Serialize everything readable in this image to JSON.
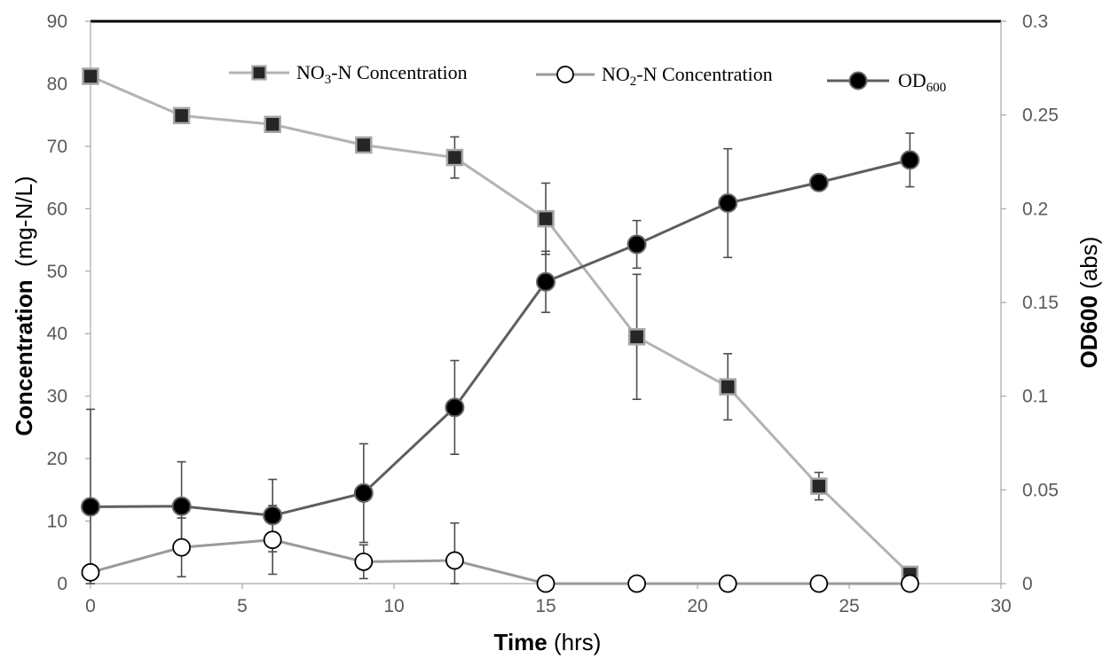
{
  "chart_data": {
    "type": "line",
    "x": [
      0,
      3,
      6,
      9,
      12,
      15,
      18,
      21,
      24,
      27
    ],
    "xlim": [
      0,
      30
    ],
    "xticks": [
      "0",
      "5",
      "10",
      "15",
      "20",
      "25",
      "30"
    ],
    "xlabel": {
      "bold": "Time",
      "rest": " (hrs)"
    },
    "ylim_left": [
      0,
      90
    ],
    "yticks_left": [
      "0",
      "10",
      "20",
      "30",
      "40",
      "50",
      "60",
      "70",
      "80",
      "90"
    ],
    "ylabel_left": {
      "bold": "Concentration",
      "rest": "  (mg-N/L)"
    },
    "ylim_right": [
      0,
      0.3
    ],
    "yticks_right": [
      "0",
      "0.05",
      "0.1",
      "0.15",
      "0.2",
      "0.25",
      "0.3"
    ],
    "ylabel_right": {
      "bold": "OD600",
      "rest": " (abs)"
    },
    "grid": false,
    "legend_position": "top",
    "series": [
      {
        "key": "no3",
        "name": "NO3-N Concentration",
        "legend_parts": [
          "NO",
          "3",
          "-N Concentration"
        ],
        "axis": "left",
        "marker": "square",
        "line_color": "#b3b3b3",
        "marker_fill": "#262626",
        "values": [
          81.2,
          74.9,
          73.5,
          70.2,
          68.2,
          58.4,
          39.5,
          31.5,
          15.6,
          1.5
        ],
        "errors": [
          null,
          null,
          null,
          null,
          3.3,
          5.7,
          10.0,
          5.3,
          2.2,
          1.0
        ]
      },
      {
        "key": "no2",
        "name": "NO2-N Concentration",
        "legend_parts": [
          "NO",
          "2",
          "-N Concentration"
        ],
        "axis": "left",
        "marker": "open-circle",
        "line_color": "#9a9a9a",
        "marker_fill": "#ffffff",
        "values": [
          1.8,
          5.8,
          7.0,
          3.5,
          3.7,
          0,
          0,
          0,
          0,
          0
        ],
        "errors": [
          null,
          4.7,
          5.5,
          2.7,
          6.0,
          null,
          null,
          null,
          null,
          null
        ]
      },
      {
        "key": "od",
        "name": "OD600",
        "legend_parts": [
          "OD",
          "600",
          ""
        ],
        "axis": "right",
        "marker": "filled-circle",
        "line_color": "#5e5e5e",
        "marker_fill": "#000000",
        "values": [
          0.041,
          0.0413,
          0.0363,
          0.0483,
          0.094,
          0.161,
          0.181,
          0.203,
          0.214,
          0.226
        ],
        "errors": [
          0.052,
          0.0237,
          0.0193,
          0.0263,
          0.025,
          0.0163,
          0.0127,
          0.029,
          0.0037,
          0.0143
        ]
      }
    ]
  }
}
